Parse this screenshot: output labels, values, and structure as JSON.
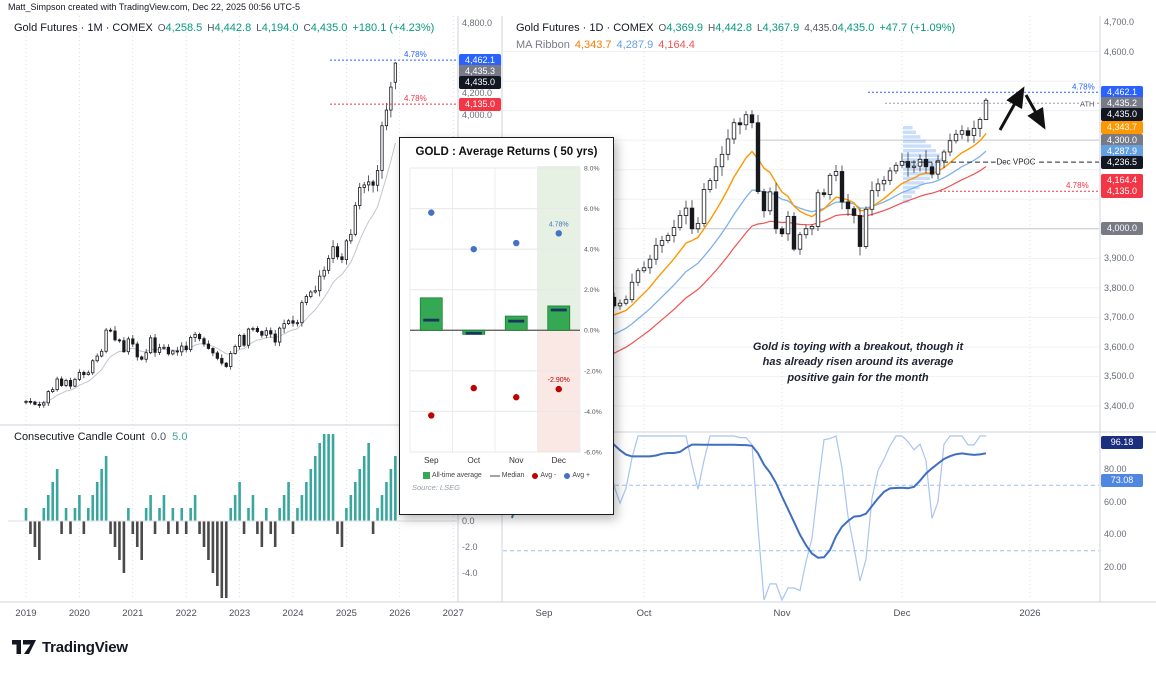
{
  "attribution": "Matt_Simpson created with TradingView.com, Dec 22, 2025 00:56 UTC-5",
  "brand": {
    "name": "TradingView"
  },
  "left_chart": {
    "header": {
      "title": "Gold Futures · 1M · COMEX",
      "o_label": "O",
      "o": "4,258.5",
      "h_label": "H",
      "h": "4,442.8",
      "l_label": "L",
      "l": "4,194.0",
      "c_label": "C",
      "c": "4,435.0",
      "change": "+180.1 (+4.23%)"
    },
    "pct_upper": "4.78%",
    "pct_lower": "4.78%",
    "axis_plain": [
      "4,800.0",
      "4,200.0",
      "4,000.0"
    ],
    "badges": [
      {
        "text": "4,462.1",
        "color": "blue"
      },
      {
        "text": "4,435.3",
        "color": "gray"
      },
      {
        "text": "4,435.0",
        "color": "black"
      },
      {
        "text": "4,135.0",
        "color": "red"
      }
    ],
    "indicator": {
      "title": "Consecutive Candle Count",
      "value_zero": "0.0",
      "value_current": "5.0",
      "axis": [
        "0.0",
        "-2.0",
        "-4.0"
      ]
    },
    "time_axis": [
      "2019",
      "2020",
      "2021",
      "2022",
      "2023",
      "2024",
      "2025",
      "2026",
      "2027"
    ]
  },
  "right_chart": {
    "header": {
      "title": "Gold Futures · 1D · COMEX",
      "o_label": "O",
      "o": "4,369.9",
      "h_label": "H",
      "h": "4,442.8",
      "l_label": "L",
      "l": "4,367.9",
      "c_label": "C",
      "c": "4,435.0",
      "change": "+47.7 (+1.09%)"
    },
    "ma_ribbon": {
      "label": "MA Ribbon",
      "v1": "4,343.7",
      "v2": "4,287.9",
      "v3": "4,164.4"
    },
    "pct_upper": "4.78%",
    "pct_lower": "4.78%",
    "ath_label": "ATH",
    "vpoc_label": "Dec VPOC",
    "annotation_lines": [
      "Gold is toying with a breakout, though it",
      "has already risen around its average",
      "positive gain for the month"
    ],
    "axis_plain": [
      "4,700.0",
      "4,600.0",
      "3,900.0",
      "3,800.0",
      "3,700.0",
      "3,600.0",
      "3,500.0",
      "3,400.0"
    ],
    "badges": [
      {
        "text": "4,462.1",
        "color": "blue"
      },
      {
        "text": "4,435.2",
        "color": "gray"
      },
      {
        "text": "4,435.0",
        "color": "black"
      },
      {
        "text": "4,343.7",
        "color": "orange"
      },
      {
        "text": "4,300.0",
        "color": "gray"
      },
      {
        "text": "4,287.9",
        "color": "skyblue"
      },
      {
        "text": "4,236.5",
        "color": "black"
      },
      {
        "text": "4,164.4",
        "color": "red"
      },
      {
        "text": "4,135.0",
        "color": "red"
      },
      {
        "text": "4,000.0",
        "color": "gray"
      }
    ],
    "oscillator": {
      "fast": "96.18",
      "slow": "73.08",
      "axis": [
        "80.00",
        "60.00",
        "40.00",
        "20.00"
      ]
    },
    "time_axis": [
      "Sep",
      "Oct",
      "Nov",
      "Dec",
      "2026"
    ]
  },
  "popup": {
    "title": "GOLD : Average Returns ( 50 yrs)",
    "y_ticks": [
      "8.0%",
      "6.0%",
      "4.0%",
      "2.0%",
      "0.0%",
      "-2.0%",
      "-4.0%",
      "-6.0%"
    ],
    "legend": [
      "All-time average",
      "Median",
      "Avg -",
      "Avg +"
    ],
    "source": "Source: LSEG"
  },
  "chart_data": [
    {
      "type": "candlestick",
      "name": "Gold Futures 1M COMEX",
      "timeframe": "monthly",
      "start": "2019-01",
      "ylim": [
        1150,
        4850
      ],
      "last_ohlc": {
        "o": 4258.5,
        "h": 4442.8,
        "l": 4194.0,
        "c": 4435.0
      },
      "closes": [
        1320,
        1313,
        1292,
        1286,
        1306,
        1410,
        1428,
        1526,
        1466,
        1513,
        1460,
        1523,
        1587,
        1566,
        1583,
        1694,
        1737,
        1781,
        1976,
        1968,
        1886,
        1879,
        1777,
        1895,
        1848,
        1729,
        1708,
        1768,
        1905,
        1771,
        1814,
        1818,
        1757,
        1784,
        1776,
        1829,
        1796,
        1909,
        1937,
        1897,
        1848,
        1807,
        1766,
        1716,
        1672,
        1641,
        1760,
        1826,
        1928,
        1837,
        1986,
        1992,
        1963,
        1929,
        1971,
        1940,
        1866,
        1994,
        2036,
        2062,
        2040,
        2044,
        2230,
        2286,
        2327,
        2339,
        2473,
        2527,
        2635,
        2744,
        2651,
        2625,
        2798,
        2858,
        3123,
        3289,
        3313,
        3341,
        3310,
        3446,
        3858,
        4002,
        4214,
        4435
      ]
    },
    {
      "type": "bar",
      "name": "Consecutive Candle Count",
      "derivation": "signed count of consecutive up/down monthly closes",
      "current_values": [
        0.0,
        5.0
      ]
    },
    {
      "type": "candlestick",
      "name": "Gold Futures 1D COMEX",
      "timeframe": "daily",
      "start": "2025-09",
      "ylim": [
        3400,
        4700
      ],
      "last_ohlc": {
        "o": 4369.9,
        "h": 4442.8,
        "l": 4367.9,
        "c": 4435.0
      },
      "ma_ribbon_last": [
        4343.7,
        4287.9,
        4164.4
      ],
      "closes": [
        3476,
        3533,
        3560,
        3547,
        3587,
        3627,
        3635,
        3641,
        3644,
        3680,
        3685,
        3689,
        3675,
        3682,
        3745,
        3791,
        3768,
        3739,
        3748,
        3760,
        3819,
        3858,
        3868,
        3897,
        3944,
        3960,
        3977,
        4004,
        4045,
        4070,
        4000,
        4018,
        4133,
        4163,
        4210,
        4252,
        4304,
        4359,
        4352,
        4386,
        4359,
        4126,
        4061,
        4125,
        4000,
        3983,
        4042,
        3931,
        3980,
        4000,
        4008,
        4122,
        4116,
        4181,
        4194,
        4091,
        4068,
        4045,
        3940,
        4066,
        4129,
        4152,
        4164,
        4196,
        4215,
        4228,
        4208,
        4212,
        4235,
        4210,
        4185,
        4230,
        4260,
        4298,
        4320,
        4332,
        4316,
        4340,
        4370,
        4435
      ]
    },
    {
      "type": "line",
      "name": "oscillator",
      "range": [
        0,
        100
      ],
      "levels": [
        70,
        30
      ],
      "last_values": {
        "fast": 96.18,
        "slow": 73.08
      }
    },
    {
      "type": "bar",
      "name": "GOLD : Average Returns ( 50 yrs)",
      "categories": [
        "Sep",
        "Oct",
        "Nov",
        "Dec"
      ],
      "series": [
        {
          "name": "All-time average",
          "values": [
            1.6,
            -0.2,
            0.7,
            1.2
          ]
        },
        {
          "name": "Median",
          "values": [
            0.5,
            -0.15,
            0.45,
            1.0
          ]
        },
        {
          "name": "Avg +",
          "values": [
            5.8,
            4.0,
            4.3,
            4.78
          ]
        },
        {
          "name": "Avg -",
          "values": [
            -4.2,
            -2.85,
            -3.3,
            -2.9
          ]
        }
      ],
      "ylim": [
        -6,
        8
      ],
      "highlight": "Dec",
      "point_labels": {
        "avg_plus_dec": "4.78%",
        "avg_minus_dec": "-2.90%"
      }
    }
  ]
}
